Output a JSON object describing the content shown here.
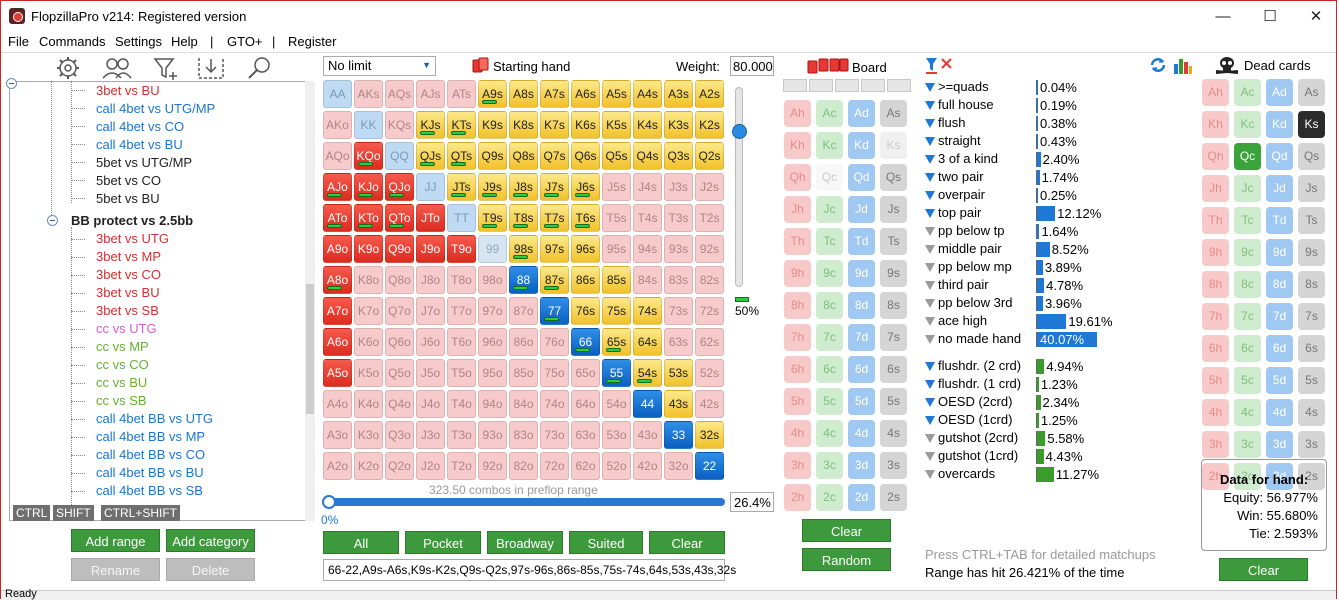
{
  "window": {
    "title": "FlopzillaPro v214: Registered version",
    "min_glyph": "—",
    "max_glyph": "☐",
    "close_glyph": "✕"
  },
  "menu": [
    "File",
    "Commands",
    "Settings",
    "Help",
    "|",
    "GTO+",
    "|",
    "Register"
  ],
  "tree": {
    "top_items": [
      {
        "label": "3bet vs BU",
        "color": "#d32f2f"
      },
      {
        "label": "call 4bet vs UTG/MP",
        "color": "#1976d2"
      },
      {
        "label": "call 4bet vs CO",
        "color": "#1976d2"
      },
      {
        "label": "call 4bet vs BU",
        "color": "#1976d2"
      },
      {
        "label": "5bet vs UTG/MP",
        "color": "#222222"
      },
      {
        "label": "5bet vs CO",
        "color": "#222222"
      },
      {
        "label": "5bet vs BU",
        "color": "#222222"
      }
    ],
    "group_label": "BB protect vs 2.5bb",
    "group_items": [
      {
        "label": "3bet vs UTG",
        "color": "#d32f2f"
      },
      {
        "label": "3bet vs MP",
        "color": "#d32f2f"
      },
      {
        "label": "3bet vs CO",
        "color": "#d32f2f"
      },
      {
        "label": "3bet vs BU",
        "color": "#d32f2f"
      },
      {
        "label": "3bet vs SB",
        "color": "#d32f2f"
      },
      {
        "label": "cc vs UTG",
        "color": "#d65cd6"
      },
      {
        "label": "cc vs MP",
        "color": "#66b032"
      },
      {
        "label": "cc vs CO",
        "color": "#66b032"
      },
      {
        "label": "cc vs BU",
        "color": "#66b032"
      },
      {
        "label": "cc vs SB",
        "color": "#66b032"
      },
      {
        "label": "call 4bet BB vs UTG",
        "color": "#1976d2"
      },
      {
        "label": "call 4bet BB vs MP",
        "color": "#1976d2"
      },
      {
        "label": "call 4bet BB vs CO",
        "color": "#1976d2"
      },
      {
        "label": "call 4bet BB vs BU",
        "color": "#1976d2"
      },
      {
        "label": "call 4bet BB vs SB",
        "color": "#1976d2"
      }
    ]
  },
  "keytags": [
    "CTRL",
    "SHIFT",
    "CTRL+SHIFT"
  ],
  "left_buttons": {
    "add_range": "Add range",
    "add_category": "Add category",
    "rename": "Rename",
    "delete": "Delete"
  },
  "range": {
    "limit_select": "No limit",
    "starting_hand_label": "Starting hand",
    "weight_label": "Weight:",
    "weight_value": "80.000",
    "slider_percent": "50%",
    "combos_text": "323.50 combos in preflop range",
    "progress_percent_label": "0%",
    "progress_fraction": 0,
    "percent_box": "26.4%",
    "buttons": [
      "All",
      "Pocket",
      "Broadway",
      "Suited",
      "Clear"
    ],
    "range_text": "66-22,A9s-A6s,K9s-K2s,Q9s-Q2s,97s-96s,86s-85s,75s-74s,64s,53s,43s,32s"
  },
  "hand_grid": [
    [
      "AA",
      "AKs",
      "AQs",
      "AJs",
      "ATs",
      "A9s",
      "A8s",
      "A7s",
      "A6s",
      "A5s",
      "A4s",
      "A3s",
      "A2s"
    ],
    [
      "AKo",
      "KK",
      "KQs",
      "KJs",
      "KTs",
      "K9s",
      "K8s",
      "K7s",
      "K6s",
      "K5s",
      "K4s",
      "K3s",
      "K2s"
    ],
    [
      "AQo",
      "KQo",
      "QQ",
      "QJs",
      "QTs",
      "Q9s",
      "Q8s",
      "Q7s",
      "Q6s",
      "Q5s",
      "Q4s",
      "Q3s",
      "Q2s"
    ],
    [
      "AJo",
      "KJo",
      "QJo",
      "JJ",
      "JTs",
      "J9s",
      "J8s",
      "J7s",
      "J6s",
      "J5s",
      "J4s",
      "J3s",
      "J2s"
    ],
    [
      "ATo",
      "KTo",
      "QTo",
      "JTo",
      "TT",
      "T9s",
      "T8s",
      "T7s",
      "T6s",
      "T5s",
      "T4s",
      "T3s",
      "T2s"
    ],
    [
      "A9o",
      "K9o",
      "Q9o",
      "J9o",
      "T9o",
      "99",
      "98s",
      "97s",
      "96s",
      "95s",
      "94s",
      "93s",
      "92s"
    ],
    [
      "A8o",
      "K8o",
      "Q8o",
      "J8o",
      "T8o",
      "98o",
      "88",
      "87s",
      "86s",
      "85s",
      "84s",
      "83s",
      "82s"
    ],
    [
      "A7o",
      "K7o",
      "Q7o",
      "J7o",
      "T7o",
      "97o",
      "87o",
      "77",
      "76s",
      "75s",
      "74s",
      "73s",
      "72s"
    ],
    [
      "A6o",
      "K6o",
      "Q6o",
      "J6o",
      "T6o",
      "96o",
      "86o",
      "76o",
      "66",
      "65s",
      "64s",
      "63s",
      "62s"
    ],
    [
      "A5o",
      "K5o",
      "Q5o",
      "J5o",
      "T5o",
      "95o",
      "85o",
      "75o",
      "65o",
      "55",
      "54s",
      "53s",
      "52s"
    ],
    [
      "A4o",
      "K4o",
      "Q4o",
      "J4o",
      "T4o",
      "94o",
      "84o",
      "74o",
      "64o",
      "54o",
      "44",
      "43s",
      "42s"
    ],
    [
      "A3o",
      "K3o",
      "Q3o",
      "J3o",
      "T3o",
      "93o",
      "83o",
      "73o",
      "63o",
      "53o",
      "43o",
      "33",
      "32s"
    ],
    [
      "A2o",
      "K2o",
      "Q2o",
      "J2o",
      "T2o",
      "92o",
      "82o",
      "72o",
      "62o",
      "52o",
      "42o",
      "32o",
      "22"
    ]
  ],
  "grid_colors": [
    "DLLLLYYYYYYYY",
    "PDLYYYYYYYYYY",
    "PRDYYYYYYYYYY",
    "RRRDYYYYYLLLL",
    "RRRRDYYYYLLLL",
    "RRRRRGYYYLLLL",
    "RPPPPPBYYYLLL",
    "RPPPPPPBYYYLL",
    "RPPPPPPPBYYLL",
    "RPPPPPPPPBYYL",
    "PPPPPPPPPPBYL",
    "PPPPPPPPPPPBY",
    "PPPPPPPPPPPPB"
  ],
  "grid_bars": [
    "A9s",
    "KJs",
    "KTs",
    "KQo",
    "QJs",
    "QTs",
    "AJo",
    "KJo",
    "QJo",
    "JTs",
    "J9s",
    "J8s",
    "J7s",
    "J6s",
    "ATo",
    "KTo",
    "QTo",
    "T9s",
    "T8s",
    "T7s",
    "T6s",
    "98s",
    "A8o",
    "88",
    "87s",
    "77",
    "66",
    "65s",
    "55",
    "54s"
  ],
  "board": {
    "label": "Board",
    "ranks": [
      "A",
      "K",
      "Q",
      "J",
      "T",
      "9",
      "8",
      "7",
      "6",
      "5",
      "4",
      "3",
      "2"
    ],
    "suits": [
      "h",
      "c",
      "d",
      "s"
    ],
    "clear": "Clear",
    "random": "Random"
  },
  "dead": {
    "label": "Dead cards",
    "clear": "Clear",
    "special": {
      "Ks": "s-ks",
      "Qc": "s-qc"
    }
  },
  "stats": [
    {
      "label": ">=quads",
      "value": "0.04%",
      "pct": 0.04,
      "filter": "blue"
    },
    {
      "label": "full house",
      "value": "0.19%",
      "pct": 0.19,
      "filter": "blue"
    },
    {
      "label": "flush",
      "value": "0.38%",
      "pct": 0.38,
      "filter": "blue"
    },
    {
      "label": "straight",
      "value": "0.43%",
      "pct": 0.43,
      "filter": "blue"
    },
    {
      "label": "3 of a kind",
      "value": "2.40%",
      "pct": 2.4,
      "filter": "blue"
    },
    {
      "label": "two pair",
      "value": "1.74%",
      "pct": 1.74,
      "filter": "blue"
    },
    {
      "label": "overpair",
      "value": "0.25%",
      "pct": 0.25,
      "filter": "blue"
    },
    {
      "label": "top pair",
      "value": "12.12%",
      "pct": 12.12,
      "filter": "blue"
    },
    {
      "label": "pp below tp",
      "value": "1.64%",
      "pct": 1.64,
      "filter": "grey"
    },
    {
      "label": "middle pair",
      "value": "8.52%",
      "pct": 8.52,
      "filter": "grey"
    },
    {
      "label": "pp below mp",
      "value": "3.89%",
      "pct": 3.89,
      "filter": "grey"
    },
    {
      "label": "third pair",
      "value": "4.78%",
      "pct": 4.78,
      "filter": "grey"
    },
    {
      "label": "pp below 3rd",
      "value": "3.96%",
      "pct": 3.96,
      "filter": "grey"
    },
    {
      "label": "ace high",
      "value": "19.61%",
      "pct": 19.61,
      "filter": "grey"
    },
    {
      "label": "no made hand",
      "value": "40.07%",
      "pct": 40.07,
      "filter": "grey"
    }
  ],
  "draws": [
    {
      "label": "flushdr. (2 crd)",
      "value": "4.94%",
      "pct": 4.94,
      "filter": "blue"
    },
    {
      "label": "flushdr. (1 crd)",
      "value": "1.23%",
      "pct": 1.23,
      "filter": "blue"
    },
    {
      "label": "OESD (2crd)",
      "value": "2.34%",
      "pct": 2.34,
      "filter": "blue"
    },
    {
      "label": "OESD (1crd)",
      "value": "1.25%",
      "pct": 1.25,
      "filter": "blue"
    },
    {
      "label": "gutshot (2crd)",
      "value": "5.58%",
      "pct": 5.58,
      "filter": "grey"
    },
    {
      "label": "gutshot (1crd)",
      "value": "4.43%",
      "pct": 4.43,
      "filter": "grey"
    },
    {
      "label": "overcards",
      "value": "11.27%",
      "pct": 11.27,
      "filter": "grey"
    }
  ],
  "hint": "Press CTRL+TAB for detailed matchups",
  "hit_text": "Range has hit 26.421% of the time",
  "data_for_hand": {
    "title": "Data for hand:",
    "equity": "Equity: 56.977%",
    "win": "Win: 55.680%",
    "tie": "Tie: 2.593%"
  },
  "status": "Ready",
  "colors": {
    "stat_bar": "#1e78d6",
    "draw_bar": "#3a9c2a",
    "accent_green": "#3c9a3c"
  }
}
